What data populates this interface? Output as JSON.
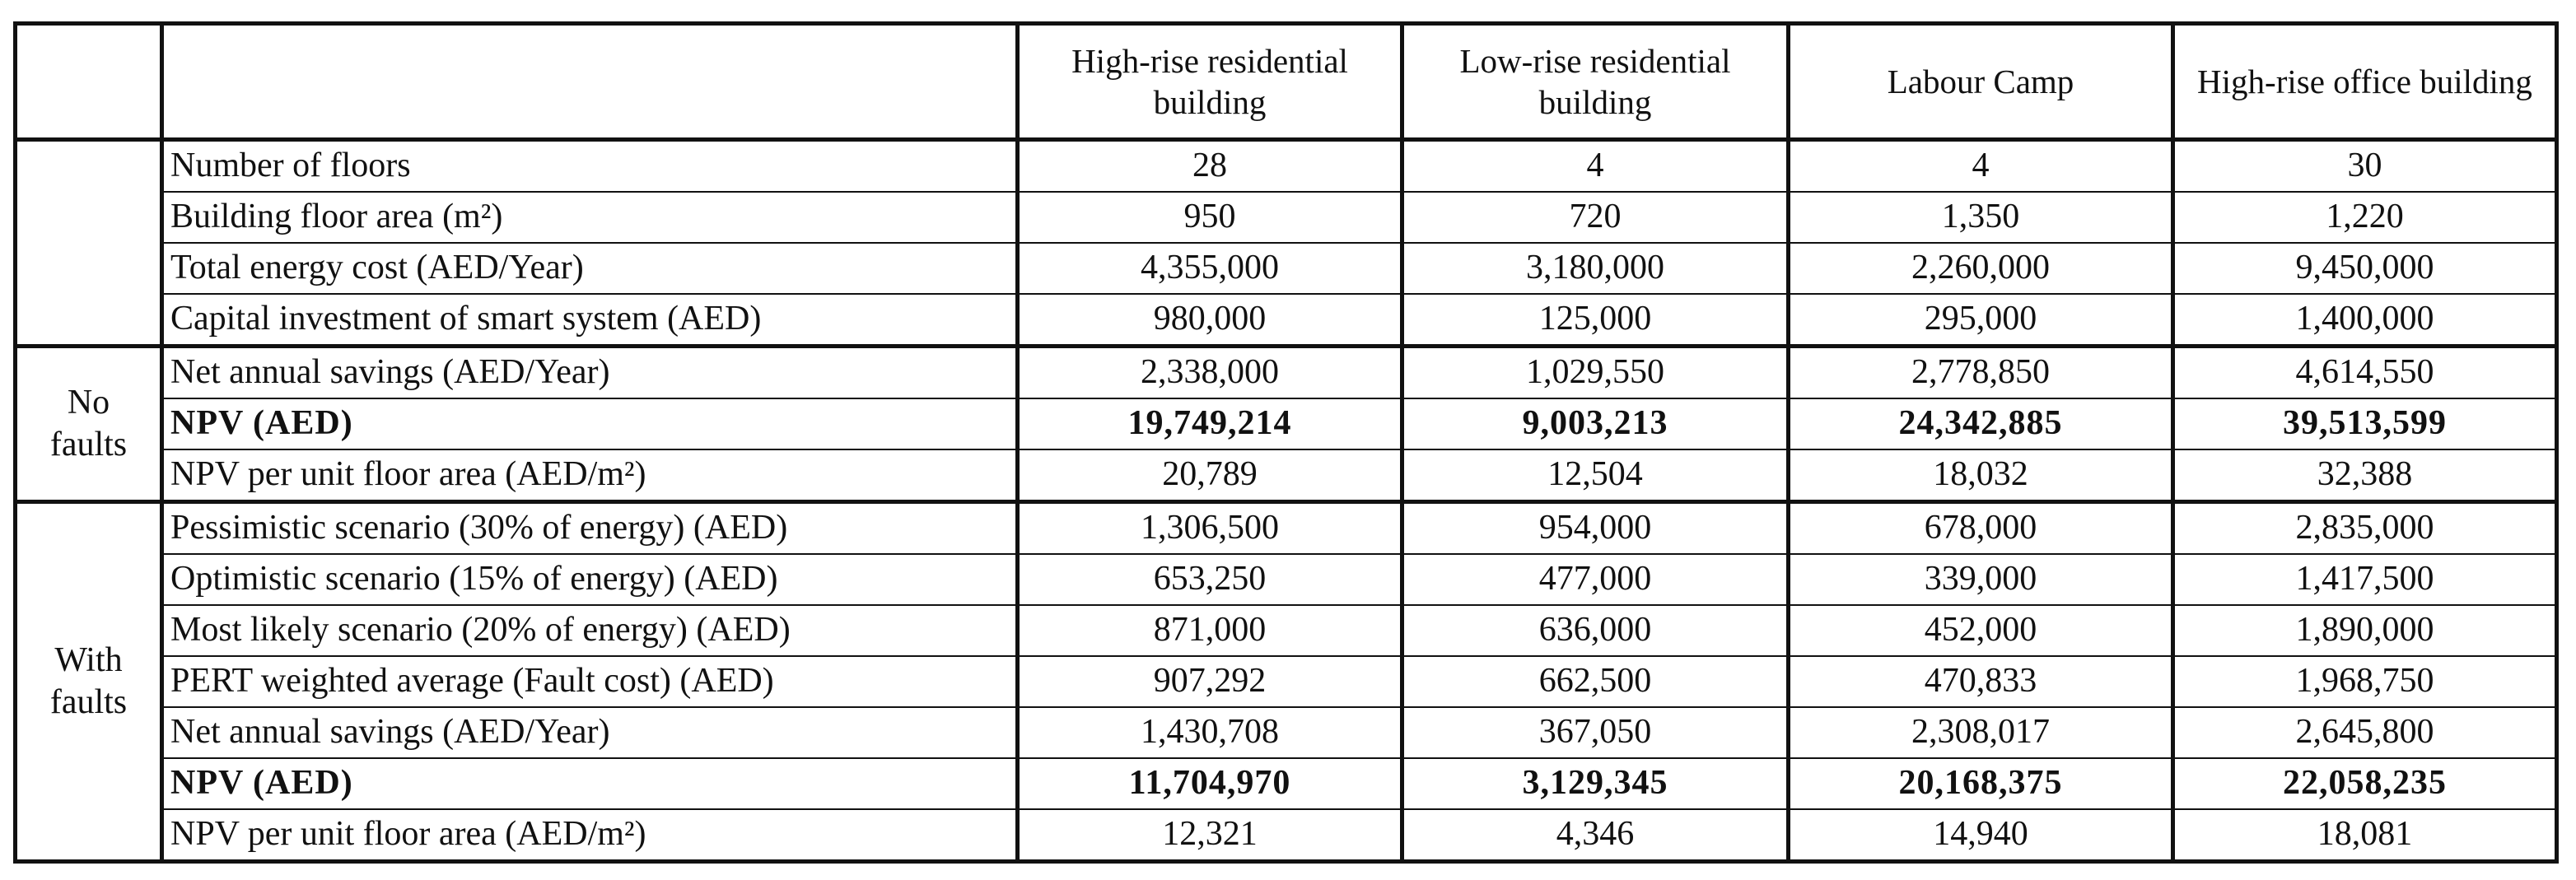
{
  "table": {
    "columns": [
      "High-rise residential building",
      "Low-rise residential building",
      "Labour Camp",
      "High-rise office building"
    ],
    "groups": [
      {
        "rows": [
          {
            "label": "Number of floors",
            "values": [
              "28",
              "4",
              "4",
              "30"
            ]
          },
          {
            "label": "Building floor area (m²)",
            "values": [
              "950",
              "720",
              "1,350",
              "1,220"
            ]
          },
          {
            "label": "Total energy cost (AED/Year)",
            "values": [
              "4,355,000",
              "3,180,000",
              "2,260,000",
              "9,450,000"
            ]
          },
          {
            "label": "Capital investment of smart system (AED)",
            "values": [
              "980,000",
              "125,000",
              "295,000",
              "1,400,000"
            ]
          }
        ]
      },
      {
        "label": "No faults",
        "rows": [
          {
            "label": "Net annual savings (AED/Year)",
            "values": [
              "2,338,000",
              "1,029,550",
              "2,778,850",
              "4,614,550"
            ]
          },
          {
            "label": "NPV (AED)",
            "bold": true,
            "values": [
              "19,749,214",
              "9,003,213",
              "24,342,885",
              "39,513,599"
            ]
          },
          {
            "label": "NPV per unit floor area (AED/m²)",
            "values": [
              "20,789",
              "12,504",
              "18,032",
              "32,388"
            ]
          }
        ]
      },
      {
        "label": "With faults",
        "rows": [
          {
            "label": "Pessimistic scenario (30% of energy) (AED)",
            "values": [
              "1,306,500",
              "954,000",
              "678,000",
              "2,835,000"
            ]
          },
          {
            "label": "Optimistic scenario (15% of energy) (AED)",
            "values": [
              "653,250",
              "477,000",
              "339,000",
              "1,417,500"
            ]
          },
          {
            "label": "Most likely scenario (20% of energy) (AED)",
            "values": [
              "871,000",
              "636,000",
              "452,000",
              "1,890,000"
            ]
          },
          {
            "label": "PERT weighted average (Fault cost) (AED)",
            "values": [
              "907,292",
              "662,500",
              "470,833",
              "1,968,750"
            ]
          },
          {
            "label": "Net annual savings (AED/Year)",
            "values": [
              "1,430,708",
              "367,050",
              "2,308,017",
              "2,645,800"
            ]
          },
          {
            "label": "NPV (AED)",
            "bold": true,
            "values": [
              "11,704,970",
              "3,129,345",
              "20,168,375",
              "22,058,235"
            ]
          },
          {
            "label": "NPV per unit floor area (AED/m²)",
            "values": [
              "12,321",
              "4,346",
              "14,940",
              "18,081"
            ]
          }
        ]
      }
    ]
  }
}
